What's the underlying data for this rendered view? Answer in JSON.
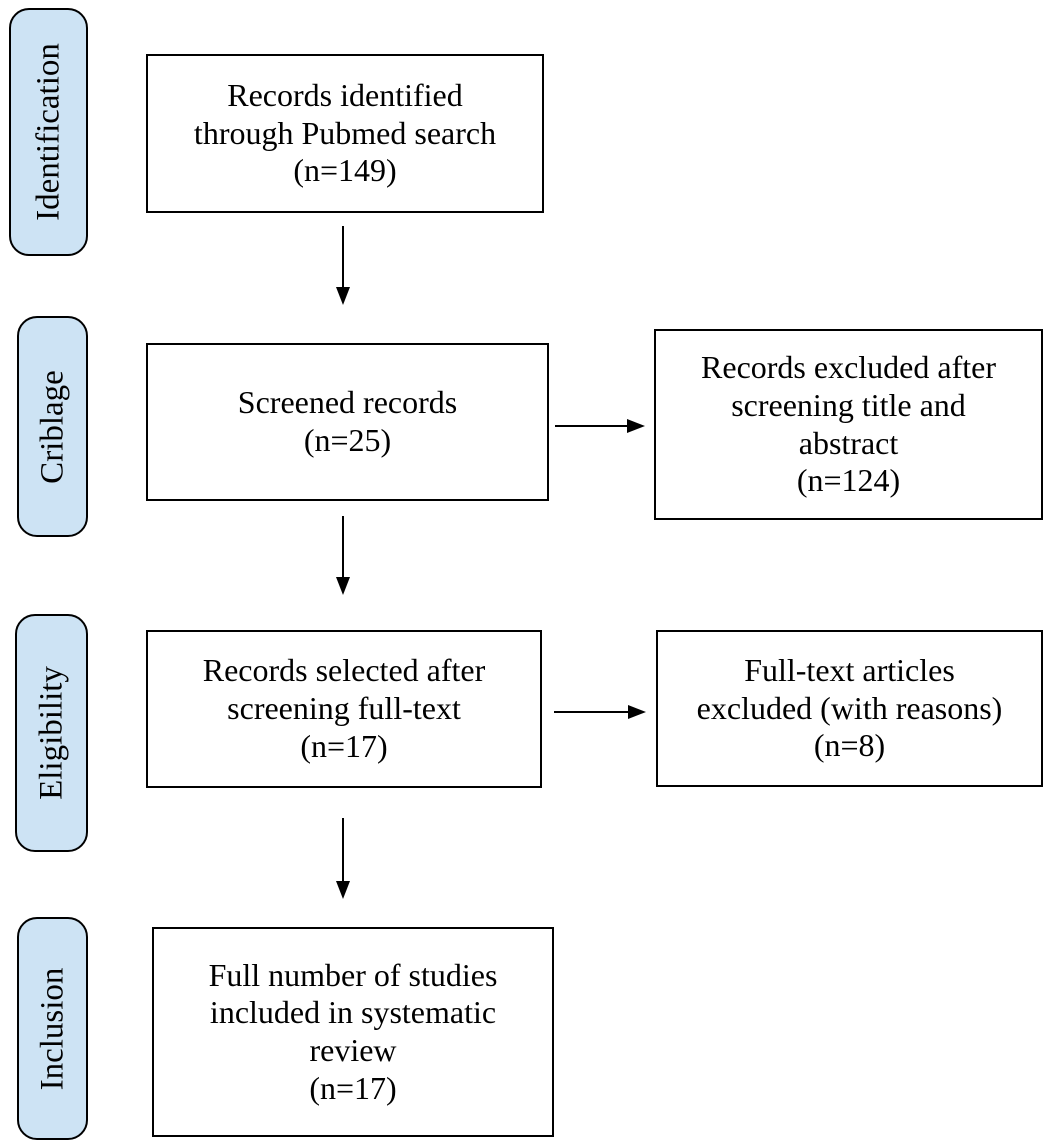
{
  "stages": {
    "identification": "Identification",
    "screening": "Criblage",
    "eligibility": "Eligibility",
    "inclusion": "Inclusion"
  },
  "boxes": {
    "identified": {
      "line1": "Records identified",
      "line2": "through Pubmed search",
      "count": "(n=149)"
    },
    "screened": {
      "line1": "Screened records",
      "count": "(n=25)"
    },
    "excluded_screening": {
      "line1": "Records excluded after",
      "line2": "screening title and",
      "line3": "abstract",
      "count": "(n=124)"
    },
    "selected": {
      "line1": "Records selected after",
      "line2": "screening full-text",
      "count": "(n=17)"
    },
    "excluded_fulltext": {
      "line1": "Full-text articles",
      "line2": "excluded (with reasons)",
      "count": "(n=8)"
    },
    "included": {
      "line1": "Full number of studies",
      "line2": "included in systematic",
      "line3": "review",
      "count": "(n=17)"
    }
  },
  "colors": {
    "stage_fill": "#cde3f4",
    "stroke": "#000000",
    "box_fill": "#ffffff"
  }
}
